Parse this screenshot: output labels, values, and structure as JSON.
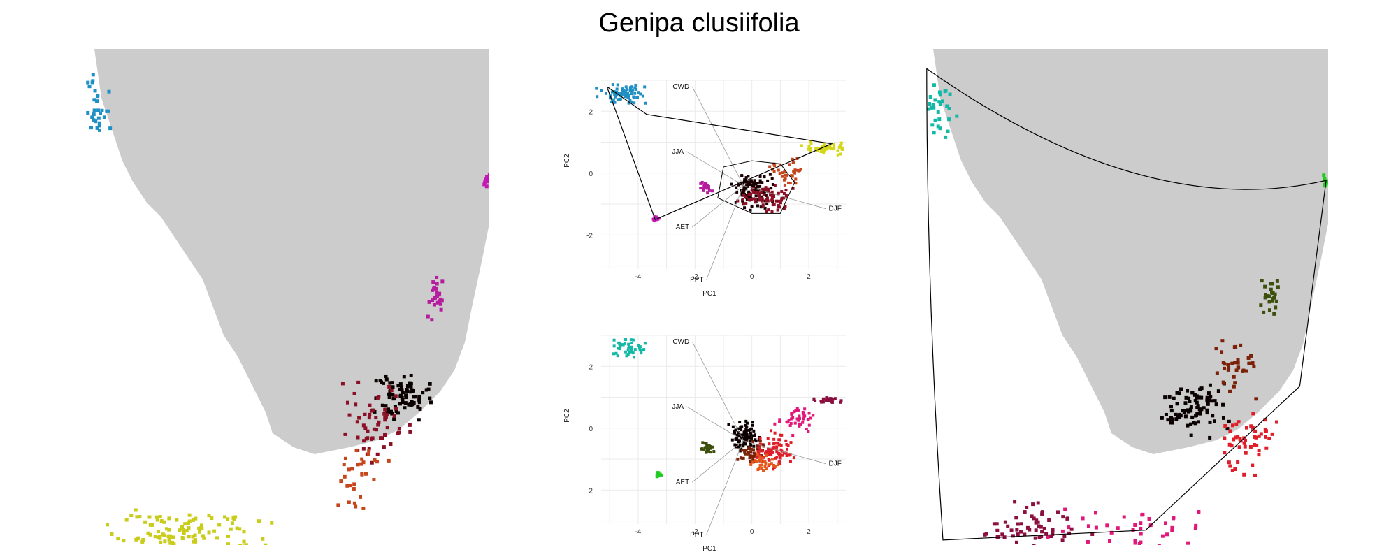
{
  "title": "Genipa clusiifolia",
  "chart_data": [
    {
      "type": "scatter",
      "panel": "pca-top",
      "hull": true,
      "xlabel": "PC1",
      "ylabel": "PC2",
      "xlim": [
        -5.3,
        3.3
      ],
      "ylim": [
        -3.1,
        3.0
      ],
      "xticks": [
        -4,
        -2,
        0,
        2
      ],
      "yticks": [
        -2,
        0,
        2
      ],
      "grid": true,
      "loadings": [
        {
          "name": "CWD",
          "x": -2.1,
          "y": 2.8
        },
        {
          "name": "JJA",
          "x": -2.3,
          "y": 0.7
        },
        {
          "name": "DJF",
          "x": 2.6,
          "y": -1.15
        },
        {
          "name": "AET",
          "x": -2.1,
          "y": -1.75
        },
        {
          "name": "PPT",
          "x": -1.6,
          "y": -3.45
        }
      ],
      "clusters": [
        {
          "name": "northwest",
          "color": "#1f8fc4",
          "cx": -4.5,
          "cy": 2.55,
          "sx": 0.6,
          "sy": 0.2,
          "n": 70
        },
        {
          "name": "east-small",
          "color": "#c418b4",
          "cx": -3.4,
          "cy": -1.45,
          "sx": 0.08,
          "sy": 0.08,
          "n": 14
        },
        {
          "name": "east-mid",
          "color": "#b61d9e",
          "cx": -1.6,
          "cy": -0.5,
          "sx": 0.15,
          "sy": 0.12,
          "n": 25
        },
        {
          "name": "central",
          "color": "#1a0000",
          "cx": 0.0,
          "cy": -0.5,
          "sx": 0.45,
          "sy": 0.35,
          "n": 120
        },
        {
          "name": "central-red",
          "color": "#8b0f25",
          "cx": 0.5,
          "cy": -0.8,
          "sx": 0.55,
          "sy": 0.3,
          "n": 80
        },
        {
          "name": "orange",
          "color": "#c4461c",
          "cx": 1.3,
          "cy": 0.0,
          "sx": 0.4,
          "sy": 0.3,
          "n": 35
        },
        {
          "name": "yellow",
          "color": "#d6d61a",
          "cx": 2.6,
          "cy": 0.8,
          "sx": 0.5,
          "sy": 0.12,
          "n": 45
        }
      ],
      "hull_vertices": [
        [
          -5.1,
          2.8
        ],
        [
          -3.7,
          1.9
        ],
        [
          2.8,
          0.95
        ],
        [
          -3.4,
          -1.5
        ],
        [
          -5.1,
          2.8
        ]
      ],
      "inner_hull": [
        [
          -1.0,
          0.2
        ],
        [
          0.0,
          0.4
        ],
        [
          1.0,
          0.3
        ],
        [
          1.5,
          -0.3
        ],
        [
          1.0,
          -1.3
        ],
        [
          0.0,
          -1.3
        ],
        [
          -1.2,
          -0.8
        ],
        [
          -1.0,
          0.2
        ]
      ]
    },
    {
      "type": "scatter",
      "panel": "pca-bottom",
      "hull": false,
      "xlabel": "PC1",
      "ylabel": "PC2",
      "xlim": [
        -5.3,
        3.3
      ],
      "ylim": [
        -3.1,
        3.0
      ],
      "xticks": [
        -4,
        -2,
        0,
        2
      ],
      "yticks": [
        -2,
        0,
        2
      ],
      "grid": true,
      "loadings": [
        {
          "name": "CWD",
          "x": -2.1,
          "y": 2.8
        },
        {
          "name": "JJA",
          "x": -2.3,
          "y": 0.7
        },
        {
          "name": "DJF",
          "x": 2.6,
          "y": -1.15
        },
        {
          "name": "AET",
          "x": -2.1,
          "y": -1.75
        },
        {
          "name": "PPT",
          "x": -1.6,
          "y": -3.45
        }
      ],
      "clusters": [
        {
          "name": "northwest",
          "color": "#14b8a6",
          "cx": -4.4,
          "cy": 2.55,
          "sx": 0.45,
          "sy": 0.2,
          "n": 45
        },
        {
          "name": "green",
          "color": "#22cc22",
          "cx": -3.3,
          "cy": -1.5,
          "sx": 0.08,
          "sy": 0.08,
          "n": 14
        },
        {
          "name": "olive",
          "color": "#3d4f0d",
          "cx": -1.6,
          "cy": -0.65,
          "sx": 0.15,
          "sy": 0.12,
          "n": 25
        },
        {
          "name": "central",
          "color": "#0d0000",
          "cx": -0.2,
          "cy": -0.3,
          "sx": 0.35,
          "sy": 0.35,
          "n": 90
        },
        {
          "name": "rust",
          "color": "#7a2108",
          "cx": 0.0,
          "cy": -0.8,
          "sx": 0.3,
          "sy": 0.25,
          "n": 45
        },
        {
          "name": "red",
          "color": "#e01e2a",
          "cx": 0.8,
          "cy": -0.7,
          "sx": 0.4,
          "sy": 0.35,
          "n": 80
        },
        {
          "name": "orange-red",
          "color": "#e55a1a",
          "cx": 0.4,
          "cy": -1.1,
          "sx": 0.3,
          "sy": 0.2,
          "n": 30
        },
        {
          "name": "pink",
          "color": "#e0187a",
          "cx": 1.6,
          "cy": 0.3,
          "sx": 0.45,
          "sy": 0.3,
          "n": 45
        },
        {
          "name": "crimson",
          "color": "#8b1040",
          "cx": 2.7,
          "cy": 0.9,
          "sx": 0.35,
          "sy": 0.07,
          "n": 30
        }
      ]
    },
    {
      "type": "map",
      "panel": "map-left",
      "hull": false,
      "land_color": "#cccccc",
      "clusters": [
        {
          "name": "northwest",
          "color": "#1f8fc4",
          "cx": 0.03,
          "cy": 0.12,
          "sx": 0.02,
          "sy": 0.05,
          "n": 30
        },
        {
          "name": "east-small",
          "color": "#c418b4",
          "cx": 0.995,
          "cy": 0.265,
          "sx": 0.006,
          "sy": 0.01,
          "n": 10
        },
        {
          "name": "east-mid",
          "color": "#b61d9e",
          "cx": 0.87,
          "cy": 0.5,
          "sx": 0.012,
          "sy": 0.03,
          "n": 25
        },
        {
          "name": "central",
          "color": "#0a0000",
          "cx": 0.79,
          "cy": 0.7,
          "sx": 0.05,
          "sy": 0.03,
          "n": 80
        },
        {
          "name": "central-red",
          "color": "#8b0f25",
          "cx": 0.72,
          "cy": 0.75,
          "sx": 0.05,
          "sy": 0.05,
          "n": 60
        },
        {
          "name": "orange",
          "color": "#c4461c",
          "cx": 0.68,
          "cy": 0.86,
          "sx": 0.06,
          "sy": 0.04,
          "n": 30
        },
        {
          "name": "yellow",
          "color": "#c9cc1a",
          "cx": 0.25,
          "cy": 0.98,
          "sx": 0.12,
          "sy": 0.03,
          "n": 110
        }
      ]
    },
    {
      "type": "map",
      "panel": "map-right",
      "hull": true,
      "land_color": "#cccccc",
      "clusters": [
        {
          "name": "northwest",
          "color": "#14b8a6",
          "cx": 0.04,
          "cy": 0.13,
          "sx": 0.025,
          "sy": 0.04,
          "n": 30
        },
        {
          "name": "green",
          "color": "#22cc22",
          "cx": 0.995,
          "cy": 0.265,
          "sx": 0.006,
          "sy": 0.01,
          "n": 10
        },
        {
          "name": "olive",
          "color": "#3d4f0d",
          "cx": 0.86,
          "cy": 0.5,
          "sx": 0.015,
          "sy": 0.03,
          "n": 25
        },
        {
          "name": "central",
          "color": "#0a0000",
          "cx": 0.66,
          "cy": 0.72,
          "sx": 0.06,
          "sy": 0.035,
          "n": 90
        },
        {
          "name": "rust",
          "color": "#7a2108",
          "cx": 0.77,
          "cy": 0.65,
          "sx": 0.03,
          "sy": 0.04,
          "n": 35
        },
        {
          "name": "red",
          "color": "#e01e2a",
          "cx": 0.8,
          "cy": 0.78,
          "sx": 0.05,
          "sy": 0.05,
          "n": 50
        },
        {
          "name": "pink",
          "color": "#e0187a",
          "cx": 0.55,
          "cy": 0.97,
          "sx": 0.15,
          "sy": 0.025,
          "n": 40
        },
        {
          "name": "crimson",
          "color": "#8b1040",
          "cx": 0.28,
          "cy": 0.96,
          "sx": 0.08,
          "sy": 0.03,
          "n": 60
        }
      ]
    }
  ]
}
